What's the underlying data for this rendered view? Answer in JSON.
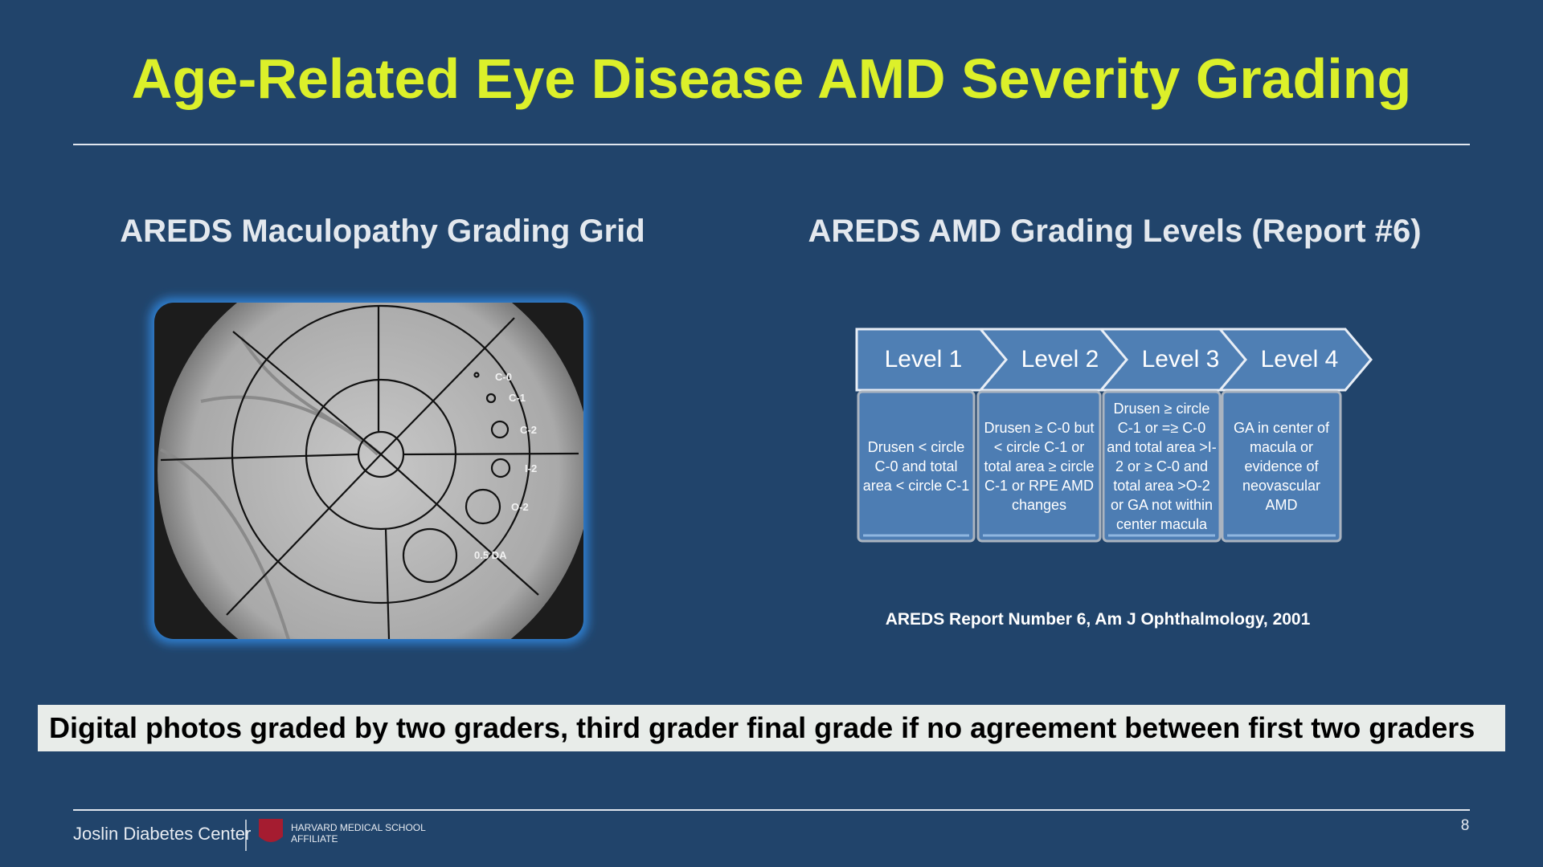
{
  "title": "Age-Related Eye Disease AMD Severity Grading",
  "left": {
    "heading": "AREDS Maculopathy Grading Grid",
    "grid_labels": [
      "C-0",
      "C-1",
      "C-2",
      "I-2",
      "O-2",
      "0.5 DA"
    ]
  },
  "right": {
    "heading": "AREDS AMD Grading Levels (Report #6)",
    "levels": [
      {
        "label": "Level 1",
        "description": "Drusen < circle C-0 and total area < circle C-1"
      },
      {
        "label": "Level 2",
        "description": "Drusen ≥ C-0 but < circle C-1 or total area ≥ circle C-1 or RPE AMD changes"
      },
      {
        "label": "Level 3",
        "description": "Drusen ≥ circle C-1 or =≥ C-0 and total area >I-2 or ≥ C-0 and total area >O-2 or GA not within center macula"
      },
      {
        "label": "Level 4",
        "description": "GA in center of macula or evidence of neovascular AMD"
      }
    ],
    "citation": "AREDS Report Number 6, Am J Ophthalmology, 2001"
  },
  "banner": "Digital photos graded by two graders, third grader final grade if no agreement between first two graders",
  "footer": {
    "brand": "Joslin Diabetes Center",
    "affiliate_line1": "HARVARD MEDICAL SCHOOL",
    "affiliate_line2": "AFFILIATE",
    "page_number": "8"
  }
}
